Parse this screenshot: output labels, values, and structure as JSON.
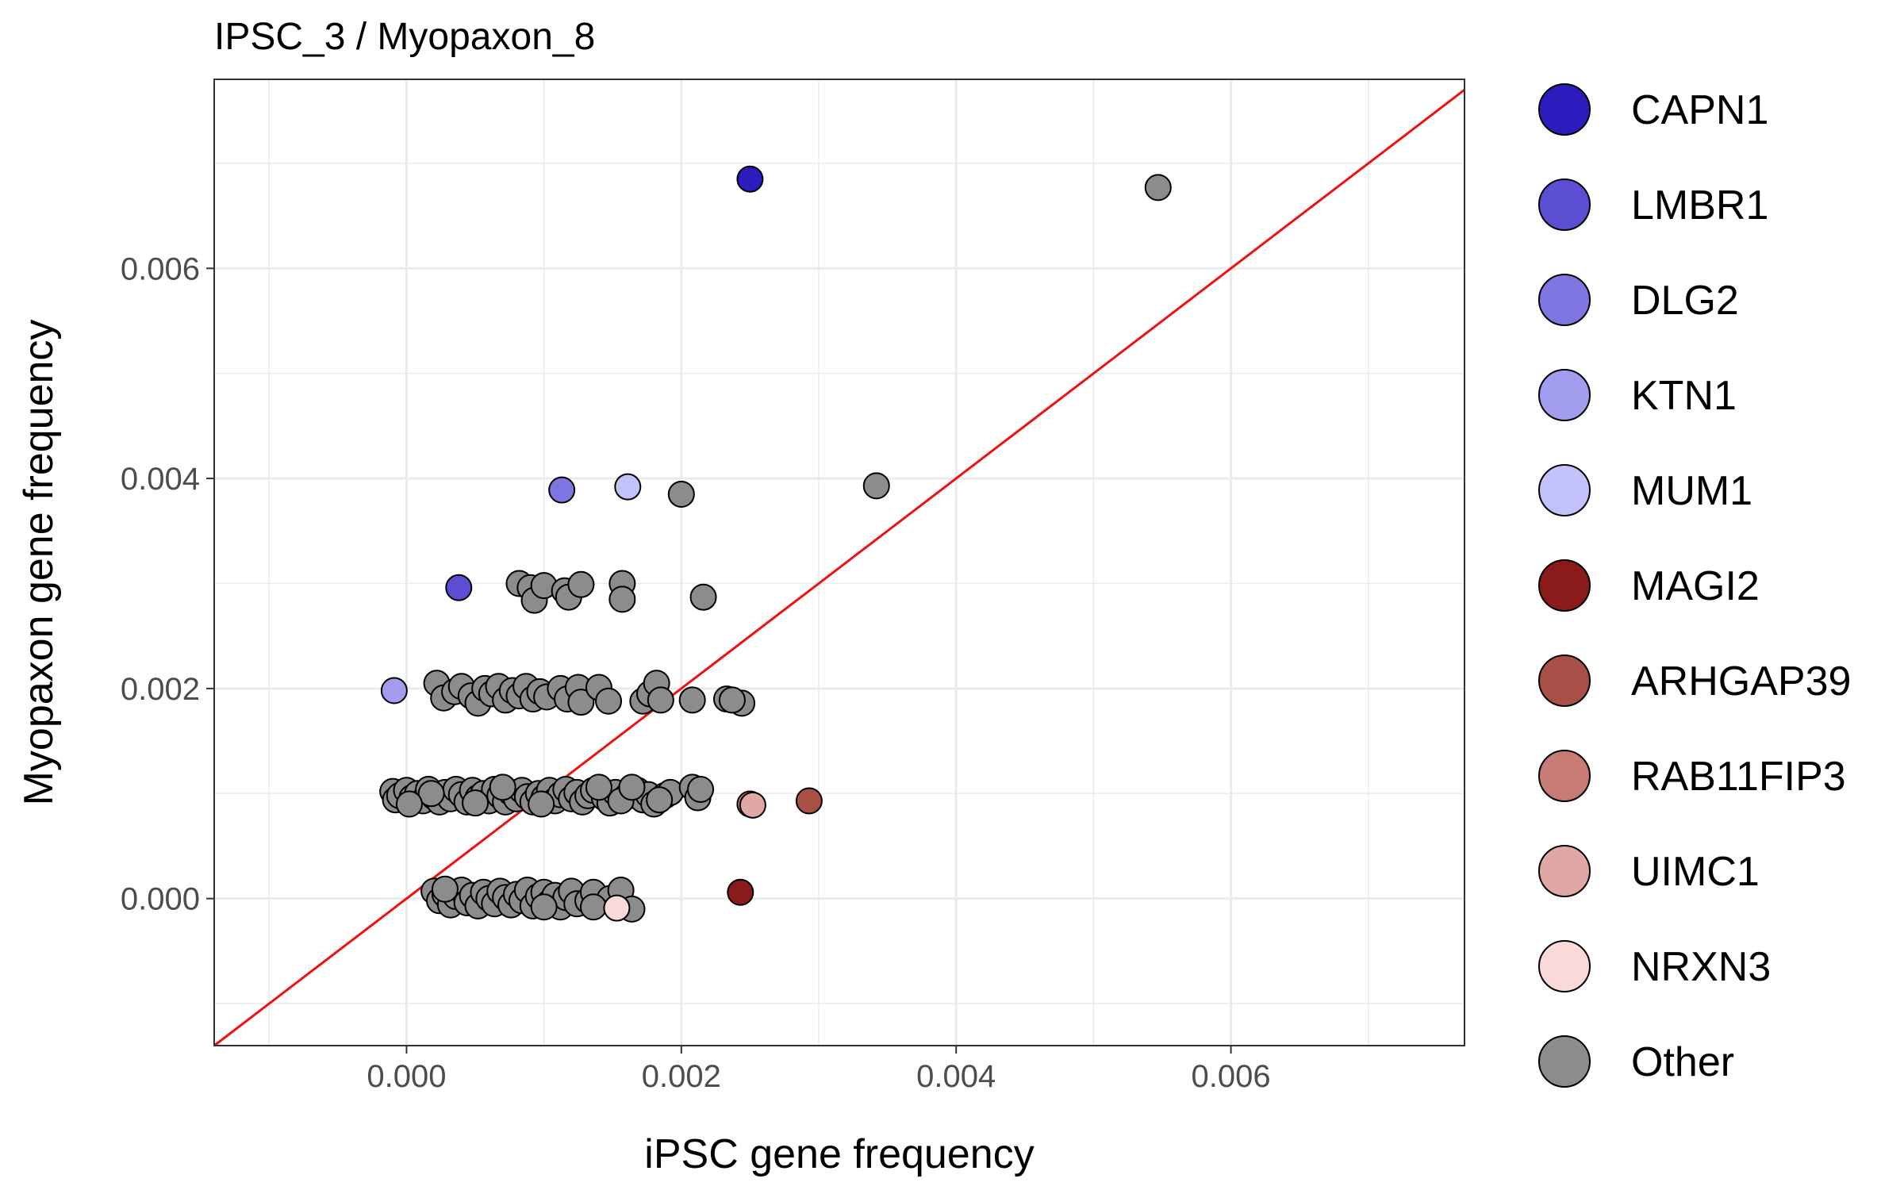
{
  "chart_data": {
    "type": "scatter",
    "title": "IPSC_3  /  Myopaxon_8",
    "xlabel": "iPSC gene frequency",
    "ylabel": "Myopaxon gene frequency",
    "xlim": [
      -0.0014,
      0.0077
    ],
    "ylim": [
      -0.0014,
      0.0078
    ],
    "x_ticks": [
      0.0,
      0.002,
      0.004,
      0.006
    ],
    "y_ticks": [
      0.0,
      0.002,
      0.004,
      0.006
    ],
    "x_tick_labels": [
      "0.000",
      "0.002",
      "0.004",
      "0.006"
    ],
    "y_tick_labels": [
      "0.000",
      "0.002",
      "0.004",
      "0.006"
    ],
    "reference_line": {
      "type": "identity",
      "color": "#ee1111"
    },
    "grid": true,
    "legend_position": "right",
    "series": [
      {
        "name": "CAPN1",
        "color": "#2d1cbd",
        "points": [
          [
            0.0025,
            0.00685
          ]
        ]
      },
      {
        "name": "LMBR1",
        "color": "#5c4ed3",
        "points": [
          [
            0.00038,
            0.00296
          ]
        ]
      },
      {
        "name": "DLG2",
        "color": "#7f75e0",
        "points": [
          [
            0.00113,
            0.00389
          ]
        ]
      },
      {
        "name": "KTN1",
        "color": "#a19cee",
        "points": [
          [
            -9e-05,
            0.00198
          ]
        ]
      },
      {
        "name": "MUM1",
        "color": "#c3c1fa",
        "points": [
          [
            0.00161,
            0.00392
          ]
        ]
      },
      {
        "name": "MAGI2",
        "color": "#8b1a1a",
        "points": [
          [
            0.00243,
            6e-05
          ]
        ]
      },
      {
        "name": "ARHGAP39",
        "color": "#a85048",
        "points": [
          [
            0.00293,
            0.00093
          ]
        ]
      },
      {
        "name": "RAB11FIP3",
        "color": "#c77b74",
        "points": [
          [
            0.0025,
            0.0009
          ]
        ]
      },
      {
        "name": "UIMC1",
        "color": "#e0a7a4",
        "points": [
          [
            0.00252,
            0.00089
          ]
        ]
      },
      {
        "name": "NRXN3",
        "color": "#fcd9d9",
        "points": [
          [
            0.00153,
            -9e-05
          ]
        ]
      },
      {
        "name": "Other",
        "color": "#8c8c8c",
        "points": [
          [
            0.00547,
            0.00677
          ],
          [
            0.00342,
            0.00393
          ],
          [
            0.002,
            0.00385
          ],
          [
            0.00216,
            0.00287
          ],
          [
            0.00082,
            0.003
          ],
          [
            0.0009,
            0.00296
          ],
          [
            0.00093,
            0.00284
          ],
          [
            0.001,
            0.00298
          ],
          [
            0.00115,
            0.00293
          ],
          [
            0.00118,
            0.00287
          ],
          [
            0.00127,
            0.00299
          ],
          [
            0.00157,
            0.003
          ],
          [
            0.00157,
            0.00285
          ],
          [
            0.00022,
            0.00205
          ],
          [
            0.00027,
            0.00191
          ],
          [
            0.00035,
            0.00197
          ],
          [
            0.0004,
            0.00202
          ],
          [
            0.00047,
            0.00193
          ],
          [
            0.00052,
            0.00186
          ],
          [
            0.00057,
            0.002
          ],
          [
            0.00062,
            0.00195
          ],
          [
            0.00067,
            0.00202
          ],
          [
            0.00072,
            0.00189
          ],
          [
            0.00077,
            0.00198
          ],
          [
            0.00082,
            0.00193
          ],
          [
            0.00087,
            0.00202
          ],
          [
            0.00092,
            0.0019
          ],
          [
            0.00097,
            0.00197
          ],
          [
            0.00102,
            0.00192
          ],
          [
            0.00112,
            0.002
          ],
          [
            0.00117,
            0.0019
          ],
          [
            0.00125,
            0.00201
          ],
          [
            0.00127,
            0.00187
          ],
          [
            0.0014,
            0.00201
          ],
          [
            0.00147,
            0.00188
          ],
          [
            0.00172,
            0.00188
          ],
          [
            0.00177,
            0.00195
          ],
          [
            0.00182,
            0.00205
          ],
          [
            0.00185,
            0.00189
          ],
          [
            0.00208,
            0.00189
          ],
          [
            0.00233,
            0.0019
          ],
          [
            0.00244,
            0.00186
          ],
          [
            0.00237,
            0.00189
          ],
          [
            -0.0001,
            0.00102
          ],
          [
            -8e-05,
            0.00094
          ],
          [
            -5e-05,
            0.00098
          ],
          [
            0.0,
            0.00103
          ],
          [
            4e-05,
            0.00096
          ],
          [
            8e-05,
            0.001
          ],
          [
            0.00012,
            0.00093
          ],
          [
            0.00016,
            0.00104
          ],
          [
            0.0002,
            0.00097
          ],
          [
            0.00024,
            0.00092
          ],
          [
            0.00028,
            0.00101
          ],
          [
            0.00032,
            0.00095
          ],
          [
            0.00036,
            0.00104
          ],
          [
            0.0004,
            0.00099
          ],
          [
            0.00044,
            0.00092
          ],
          [
            0.00048,
            0.00103
          ],
          [
            0.00052,
            0.00096
          ],
          [
            0.00056,
            0.001
          ],
          [
            0.0006,
            0.00093
          ],
          [
            0.00064,
            0.00104
          ],
          [
            0.00068,
            0.00098
          ],
          [
            0.00072,
            0.00092
          ],
          [
            0.00076,
            0.00101
          ],
          [
            0.0008,
            0.00095
          ],
          [
            0.00084,
            0.00103
          ],
          [
            0.00088,
            0.00097
          ],
          [
            0.00092,
            0.00092
          ],
          [
            0.00096,
            0.001
          ],
          [
            0.001,
            0.00096
          ],
          [
            0.00104,
            0.00103
          ],
          [
            0.00108,
            0.00093
          ],
          [
            0.00112,
            0.00099
          ],
          [
            0.00116,
            0.00104
          ],
          [
            0.0012,
            0.00095
          ],
          [
            0.00124,
            0.00101
          ],
          [
            0.00128,
            0.00092
          ],
          [
            0.00132,
            0.00098
          ],
          [
            0.00136,
            0.00103
          ],
          [
            0.00144,
            0.00096
          ],
          [
            0.00148,
            0.00091
          ],
          [
            0.00152,
            0.00101
          ],
          [
            0.0016,
            0.00097
          ],
          [
            0.00168,
            0.00103
          ],
          [
            0.00172,
            0.00094
          ],
          [
            0.00176,
            0.00099
          ],
          [
            0.0018,
            0.0009
          ],
          [
            0.00188,
            0.00098
          ],
          [
            0.00192,
            0.00101
          ],
          [
            0.00208,
            0.00106
          ],
          [
            0.00212,
            0.00096
          ],
          [
            0.00214,
            0.00104
          ],
          [
            0.00018,
            0.001
          ],
          [
            2e-05,
            0.0009
          ],
          [
            0.0005,
            0.00091
          ],
          [
            0.0007,
            0.00106
          ],
          [
            0.00098,
            0.0009
          ],
          [
            0.0014,
            0.00106
          ],
          [
            0.00156,
            0.00093
          ],
          [
            0.00184,
            0.00094
          ],
          [
            0.00164,
            0.00106
          ],
          [
            0.0002,
            7e-05
          ],
          [
            0.00024,
            -2e-05
          ],
          [
            0.00028,
            4e-05
          ],
          [
            0.00032,
            -6e-05
          ],
          [
            0.00036,
            2e-05
          ],
          [
            0.0004,
            8e-05
          ],
          [
            0.00044,
            -4e-05
          ],
          [
            0.00048,
            3e-05
          ],
          [
            0.00052,
            -7e-05
          ],
          [
            0.00056,
            6e-05
          ],
          [
            0.0006,
            0.0
          ],
          [
            0.00064,
            -5e-05
          ],
          [
            0.00068,
            7e-05
          ],
          [
            0.00072,
            1e-05
          ],
          [
            0.00076,
            -6e-05
          ],
          [
            0.0008,
            4e-05
          ],
          [
            0.00084,
            -2e-05
          ],
          [
            0.00088,
            8e-05
          ],
          [
            0.00092,
            -7e-05
          ],
          [
            0.00096,
            2e-05
          ],
          [
            0.001,
            6e-05
          ],
          [
            0.00104,
            -4e-05
          ],
          [
            0.00108,
            3e-05
          ],
          [
            0.00112,
            -8e-05
          ],
          [
            0.00116,
            1e-05
          ],
          [
            0.0012,
            7e-05
          ],
          [
            0.00124,
            -5e-05
          ],
          [
            0.00132,
            -2e-05
          ],
          [
            0.00136,
            6e-05
          ],
          [
            0.00148,
            0.0
          ],
          [
            0.00156,
            8e-05
          ],
          [
            0.00164,
            -0.0001
          ],
          [
            0.00136,
            -8e-05
          ],
          [
            0.00028,
            9e-05
          ],
          [
            0.001,
            -8e-05
          ]
        ]
      }
    ]
  }
}
